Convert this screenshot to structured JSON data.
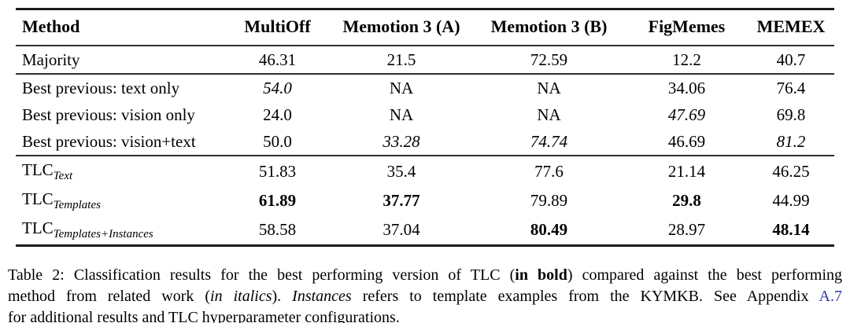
{
  "table": {
    "columns": [
      "Method",
      "MultiOff",
      "Memotion 3 (A)",
      "Memotion 3 (B)",
      "FigMemes",
      "MEMEX"
    ],
    "sections": [
      {
        "name": "baseline",
        "rows": [
          {
            "method": {
              "text": "Majority"
            },
            "values": [
              {
                "v": "46.31"
              },
              {
                "v": "21.5"
              },
              {
                "v": "72.59"
              },
              {
                "v": "12.2"
              },
              {
                "v": "40.7"
              }
            ]
          }
        ]
      },
      {
        "name": "best-previous",
        "rows": [
          {
            "method": {
              "text": "Best previous: text only"
            },
            "values": [
              {
                "v": "54.0",
                "style": "italic"
              },
              {
                "v": "NA"
              },
              {
                "v": "NA"
              },
              {
                "v": "34.06"
              },
              {
                "v": "76.4"
              }
            ]
          },
          {
            "method": {
              "text": "Best previous: vision only"
            },
            "values": [
              {
                "v": "24.0"
              },
              {
                "v": "NA"
              },
              {
                "v": "NA"
              },
              {
                "v": "47.69",
                "style": "italic"
              },
              {
                "v": "69.8"
              }
            ]
          },
          {
            "method": {
              "text": "Best previous: vision+text"
            },
            "values": [
              {
                "v": "50.0"
              },
              {
                "v": "33.28",
                "style": "italic"
              },
              {
                "v": "74.74",
                "style": "italic"
              },
              {
                "v": "46.69"
              },
              {
                "v": "81.2",
                "style": "italic"
              }
            ]
          }
        ]
      },
      {
        "name": "tlc",
        "rows": [
          {
            "method": {
              "text": "TLC",
              "sub": "Text"
            },
            "values": [
              {
                "v": "51.83"
              },
              {
                "v": "35.4"
              },
              {
                "v": "77.6"
              },
              {
                "v": "21.14"
              },
              {
                "v": "46.25"
              }
            ]
          },
          {
            "method": {
              "text": "TLC",
              "sub": "Templates"
            },
            "values": [
              {
                "v": "61.89",
                "style": "bold"
              },
              {
                "v": "37.77",
                "style": "bold"
              },
              {
                "v": "79.89"
              },
              {
                "v": "29.8",
                "style": "bold"
              },
              {
                "v": "44.99"
              }
            ]
          },
          {
            "method": {
              "text": "TLC",
              "sub": "Templates+Instances"
            },
            "values": [
              {
                "v": "58.58"
              },
              {
                "v": "37.04"
              },
              {
                "v": "80.49",
                "style": "bold"
              },
              {
                "v": "28.97"
              },
              {
                "v": "48.14",
                "style": "bold"
              }
            ]
          }
        ]
      }
    ]
  },
  "caption": {
    "lines": [
      [
        {
          "t": "Table 2: Classification results for the best performing version of TLC ("
        },
        {
          "t": "in bold",
          "style": "bold"
        },
        {
          "t": ") compared against the best performing"
        }
      ],
      [
        {
          "t": "method from related work ("
        },
        {
          "t": "in italics",
          "style": "italic"
        },
        {
          "t": "). "
        },
        {
          "t": "Instances",
          "style": "italic"
        },
        {
          "t": " refers to template examples from the KYMKB. See Appendix "
        },
        {
          "t": "A.7",
          "style": "link"
        }
      ],
      [
        {
          "t": "for additional results and TLC hyperparameter configurations."
        }
      ]
    ]
  },
  "colors": {
    "text": "#000000",
    "link": "#2e3ba5",
    "rule": "#1c1c1c"
  }
}
